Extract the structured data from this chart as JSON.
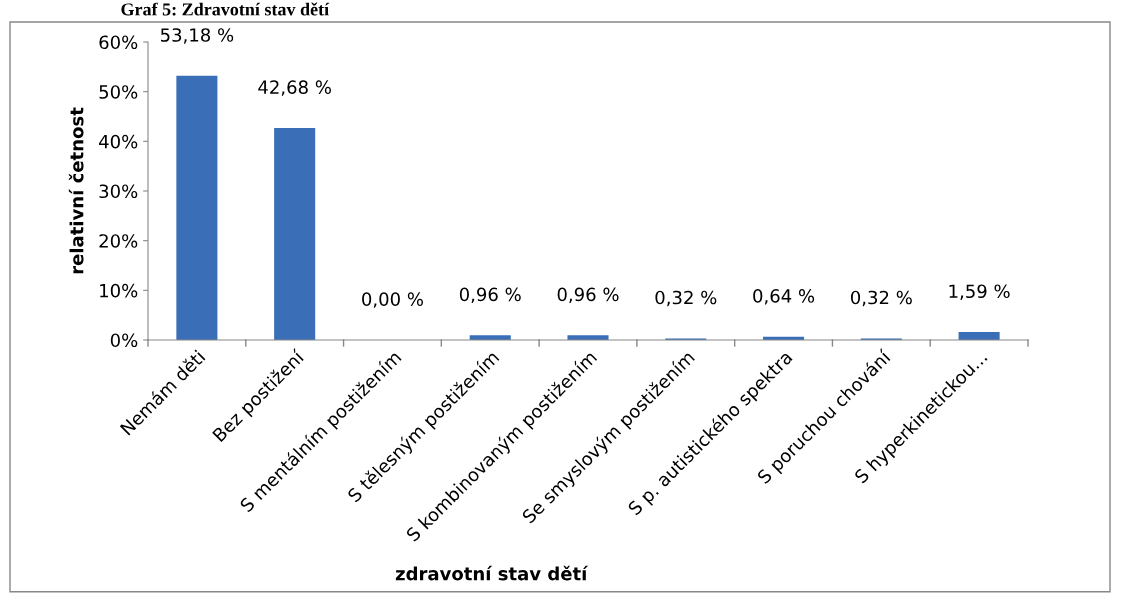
{
  "chart_data": {
    "type": "bar",
    "title": "Graf 5: Zdravotní stav dětí",
    "xlabel": "zdravotní stav dětí",
    "ylabel": "relativní četnost",
    "categories": [
      "Nemám děti",
      "Bez postižení",
      "S mentálním postižením",
      "S tělesným postižením",
      "S kombinovaným postižením",
      "Se smyslovým postižením",
      "S p. autistického spektra",
      "S poruchou chování",
      "S hyperkinetickou..."
    ],
    "values": [
      53.18,
      42.68,
      0.0,
      0.96,
      0.96,
      0.32,
      0.64,
      0.32,
      1.59
    ],
    "value_labels": [
      "53,18 %",
      "42,68 %",
      "0,00 %",
      "0,96 %",
      "0,96 %",
      "0,32 %",
      "0,64 %",
      "0,32 %",
      "1,59 %"
    ],
    "color": "#3a6fb8",
    "ylim": [
      0,
      60
    ],
    "yticks": [
      {
        "value": 0,
        "label": "0%"
      },
      {
        "value": 10,
        "label": "10%"
      },
      {
        "value": 20,
        "label": "20%"
      },
      {
        "value": 30,
        "label": "30%"
      },
      {
        "value": 40,
        "label": "40%"
      },
      {
        "value": 50,
        "label": "50%"
      },
      {
        "value": 60,
        "label": "60%"
      }
    ],
    "grid": false,
    "legend": false
  }
}
